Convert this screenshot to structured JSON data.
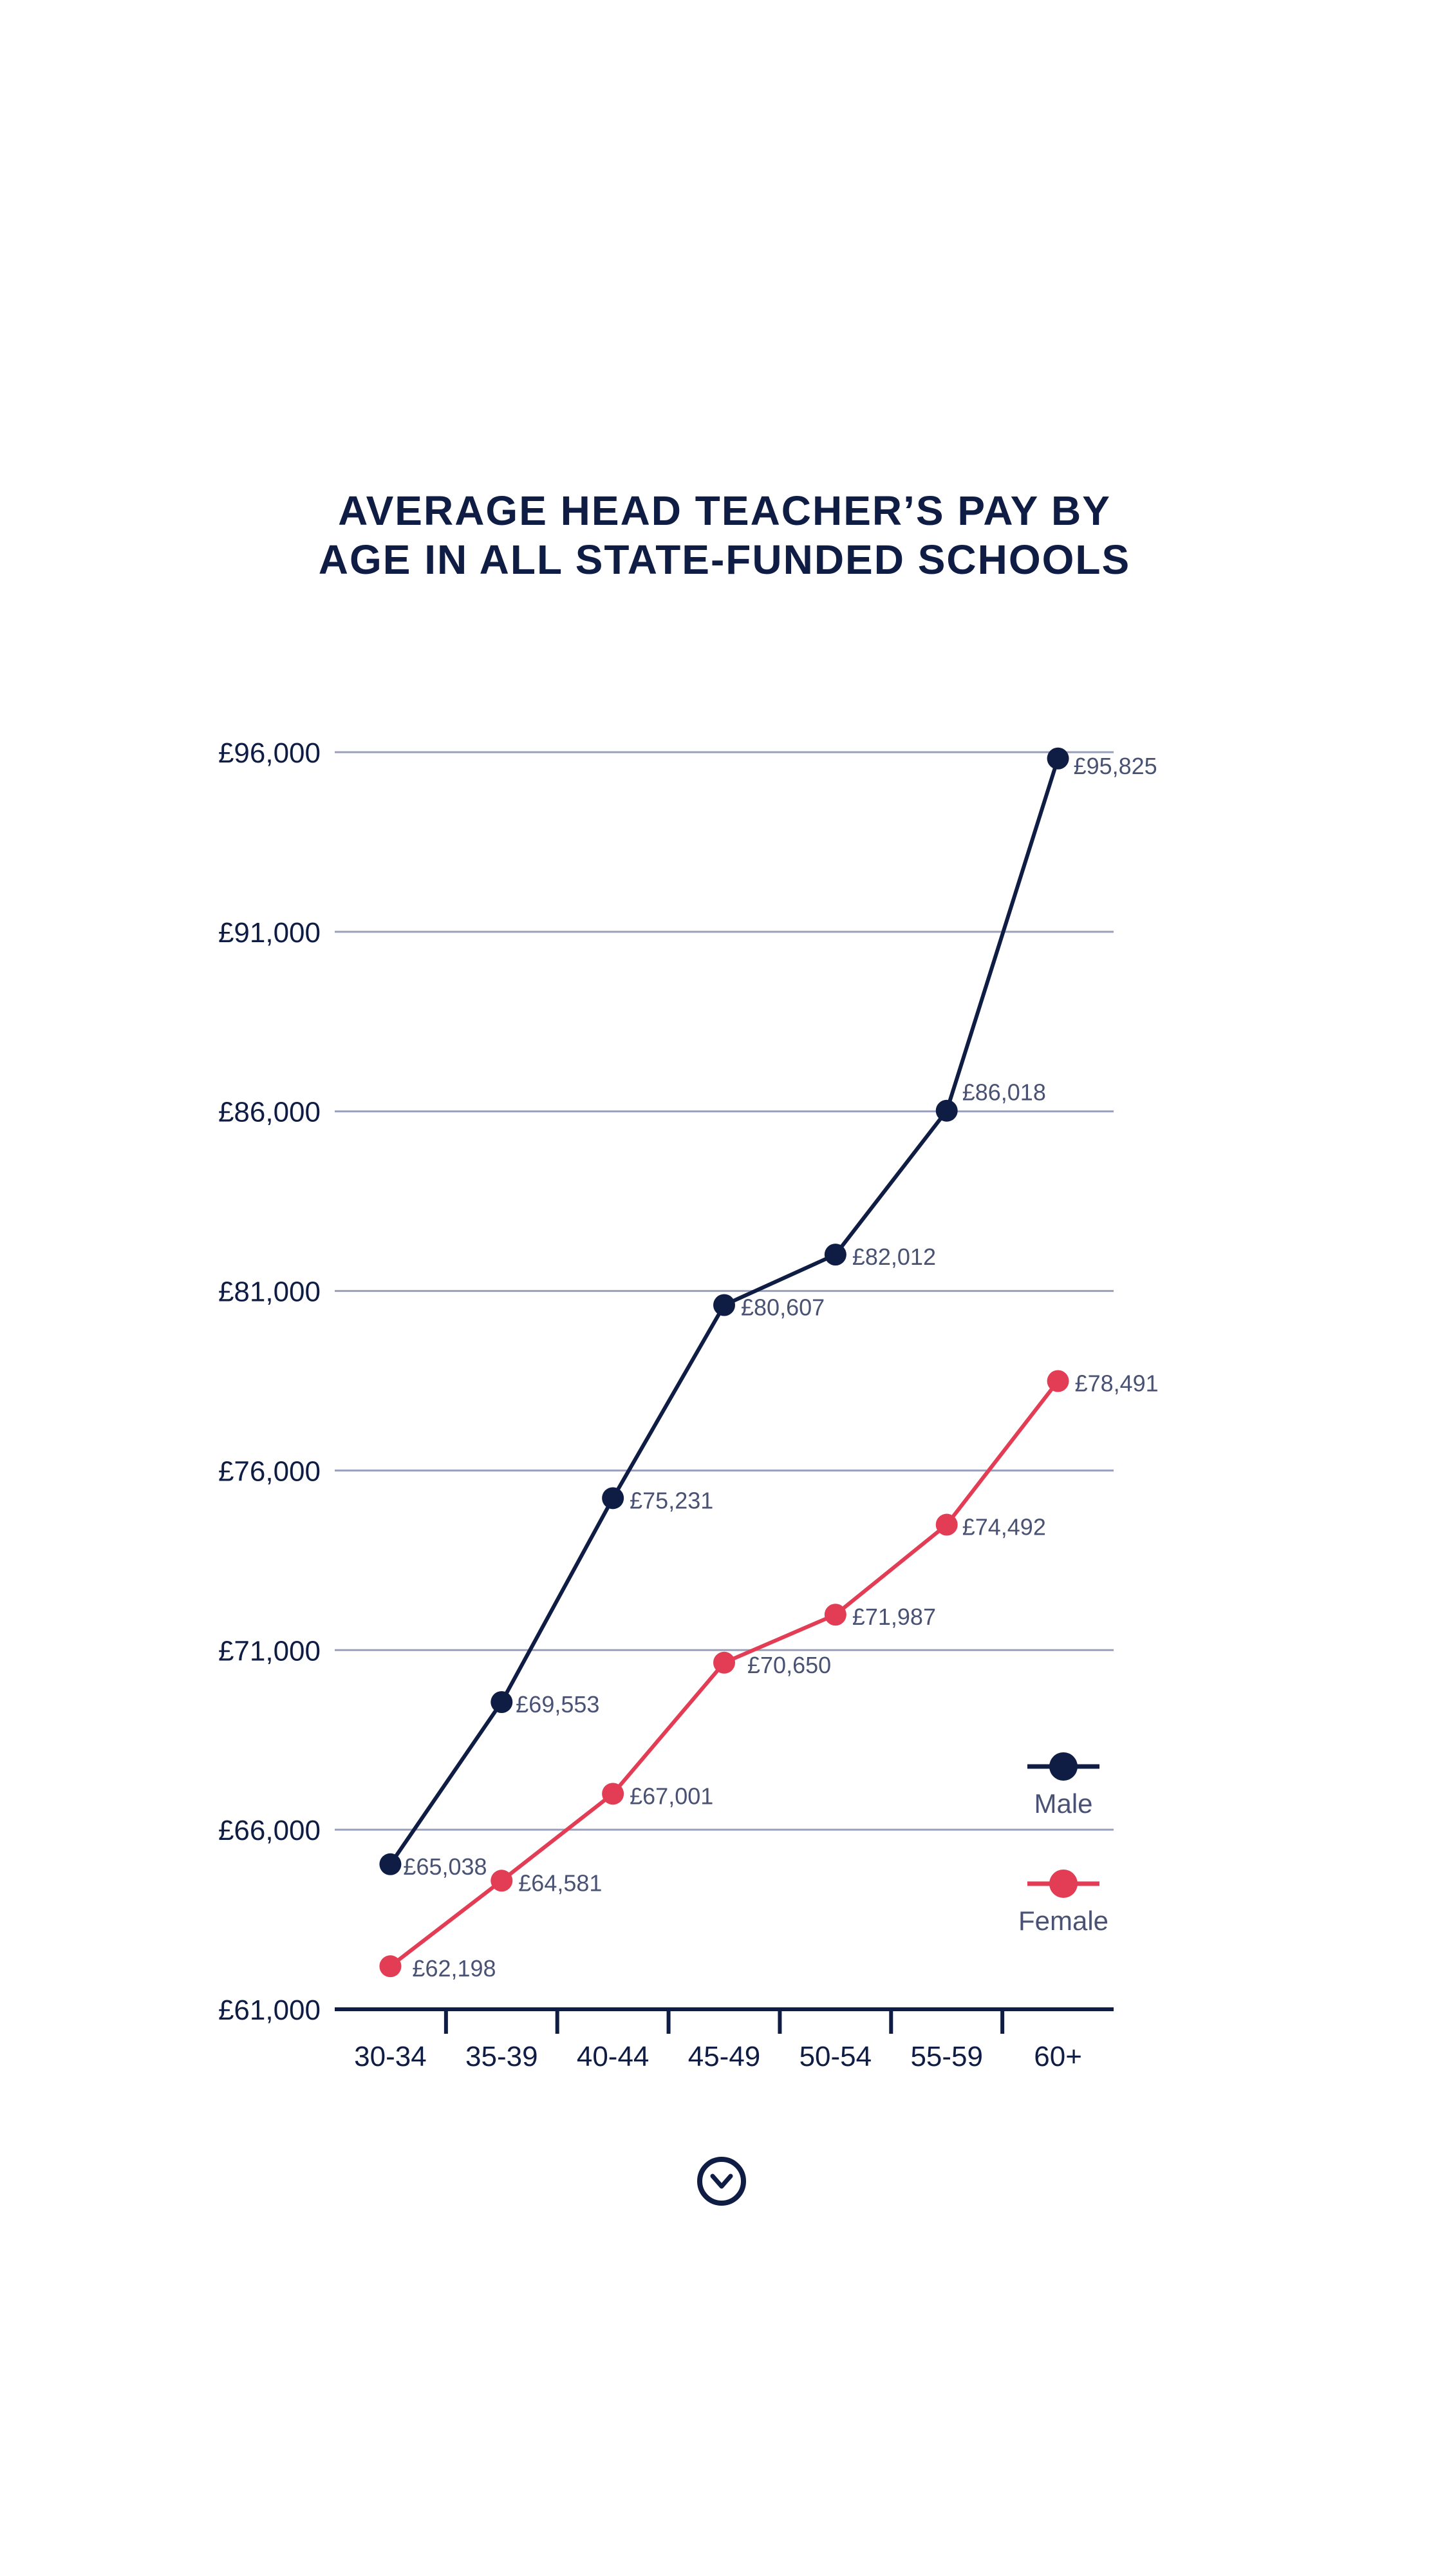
{
  "chart_data": {
    "type": "line",
    "title": "AVERAGE HEAD TEACHER’S PAY BY AGE IN ALL STATE-FUNDED SCHOOLS",
    "title_lines": [
      "AVERAGE HEAD TEACHER’S PAY BY",
      "AGE IN ALL STATE-FUNDED SCHOOLS"
    ],
    "xlabel": "",
    "ylabel": "",
    "categories": [
      "30-34",
      "35-39",
      "40-44",
      "45-49",
      "50-54",
      "55-59",
      "60+"
    ],
    "ylim": [
      61000,
      96000
    ],
    "yticks": [
      61000,
      66000,
      71000,
      76000,
      81000,
      86000,
      91000,
      96000
    ],
    "ytick_labels": [
      "£61,000",
      "£66,000",
      "£71,000",
      "£76,000",
      "£81,000",
      "£86,000",
      "£91,000",
      "£96,000"
    ],
    "grid": true,
    "legend_position": "right, lower-middle",
    "series": [
      {
        "name": "Male",
        "color": "#0f1d45",
        "values": [
          65038,
          69553,
          75231,
          80607,
          82012,
          86018,
          95825
        ],
        "labels": [
          "£65,038",
          "£69,553",
          "£75,231",
          "£80,607",
          "£82,012",
          "£86,018",
          "£95,825"
        ]
      },
      {
        "name": "Female",
        "color": "#e23d55",
        "values": [
          62198,
          64581,
          67001,
          70650,
          71987,
          74492,
          78491
        ],
        "labels": [
          "£62,198",
          "£64,581",
          "£67,001",
          "£70,650",
          "£71,987",
          "£74,492",
          "£78,491"
        ]
      }
    ]
  },
  "colors": {
    "text": "#0f1d45",
    "grid": "#9aa0bc",
    "label": "#4a5274"
  },
  "icons": {
    "scroll_down": "chevron-down-circle-icon"
  }
}
